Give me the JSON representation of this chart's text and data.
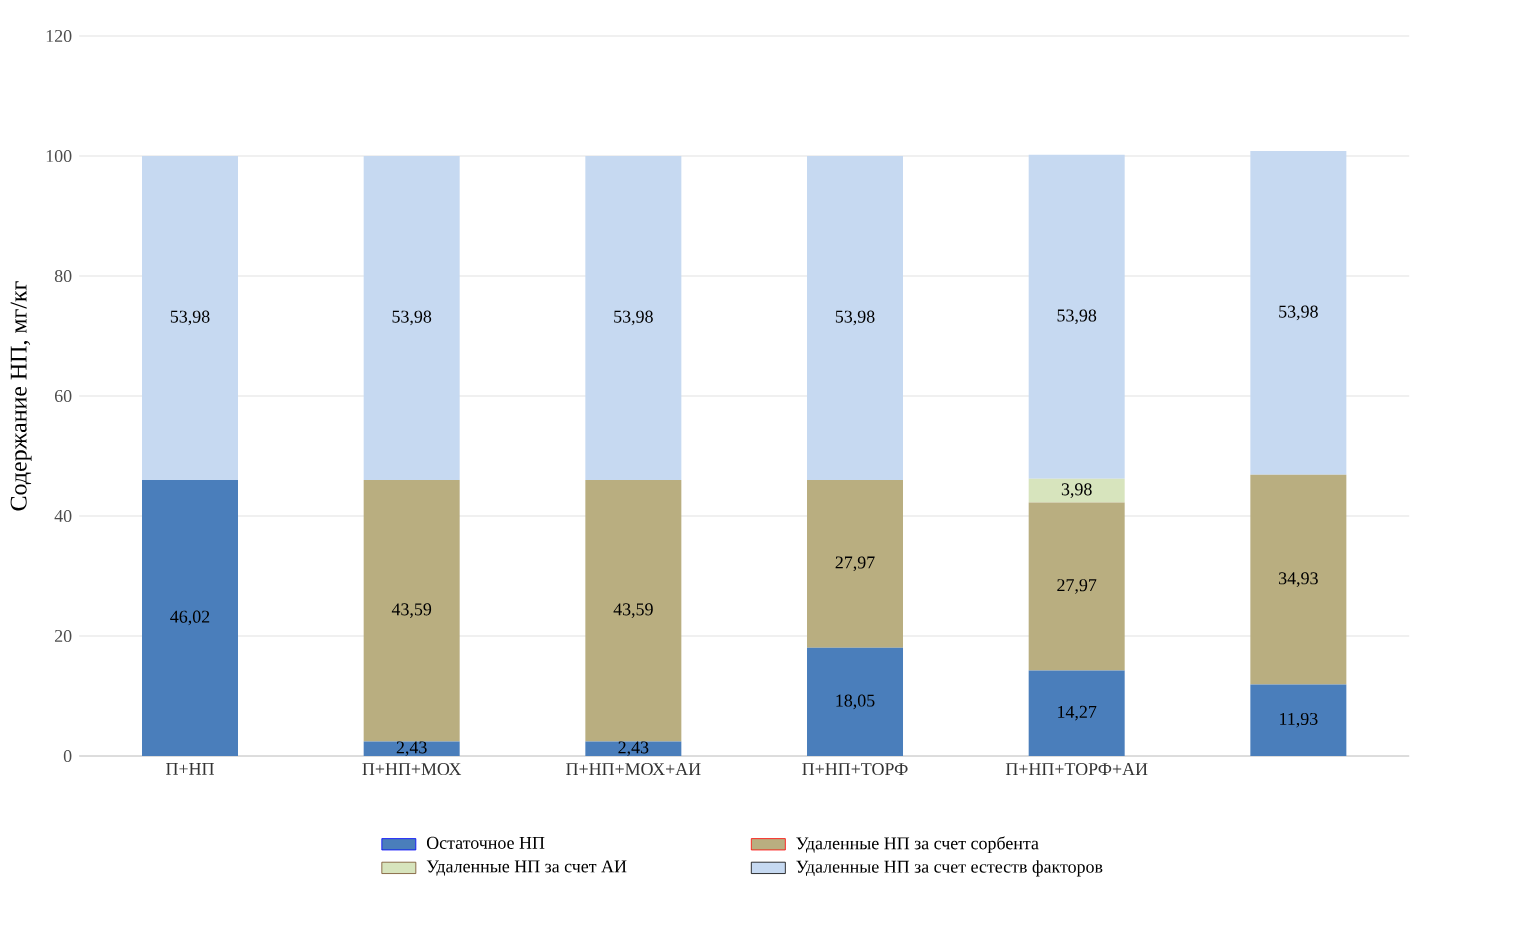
{
  "chart_data": {
    "type": "bar",
    "stacked": true,
    "ylabel": "Содержание НП, мг/кг",
    "categories": [
      "П+НП",
      "П+НП+МОХ",
      "П+НП+МОХ+АИ",
      "П+НП+ТОРФ",
      "П+НП+ТОРФ+АИ",
      null
    ],
    "series": [
      {
        "name": "Остаточное НП",
        "color": "#4a7ebb",
        "values": [
          46.02,
          2.43,
          2.43,
          18.05,
          14.27,
          11.93
        ],
        "value_labels": [
          "46,02",
          "2,43",
          "2,43",
          "18,05",
          "14,27",
          "11,93"
        ]
      },
      {
        "name": "Удаленные НП за счет сорбента",
        "color": "#b9ae80",
        "values": [
          null,
          43.59,
          43.59,
          27.97,
          27.97,
          34.93
        ],
        "value_labels": [
          null,
          "43,59",
          "43,59",
          "27,97",
          "27,97",
          "34,93"
        ]
      },
      {
        "name": "Удаленные НП за счет АИ",
        "color": "#d7e4bd",
        "values": [
          null,
          null,
          null,
          null,
          3.98,
          null
        ],
        "value_labels": [
          null,
          null,
          null,
          null,
          "3,98",
          null
        ]
      },
      {
        "name": "Удаленные НП за счет естеств факторов",
        "color": "#c6d9f1",
        "values": [
          53.98,
          53.98,
          53.98,
          53.98,
          53.98,
          53.98
        ],
        "value_labels": [
          "53,98",
          "53,98",
          "53,98",
          "53,98",
          "53,98",
          "53,98"
        ]
      }
    ],
    "ylim": [
      0,
      120
    ],
    "yticks": [
      0,
      20,
      40,
      60,
      80,
      100,
      120
    ],
    "grid": "y",
    "legend": "bottom"
  }
}
